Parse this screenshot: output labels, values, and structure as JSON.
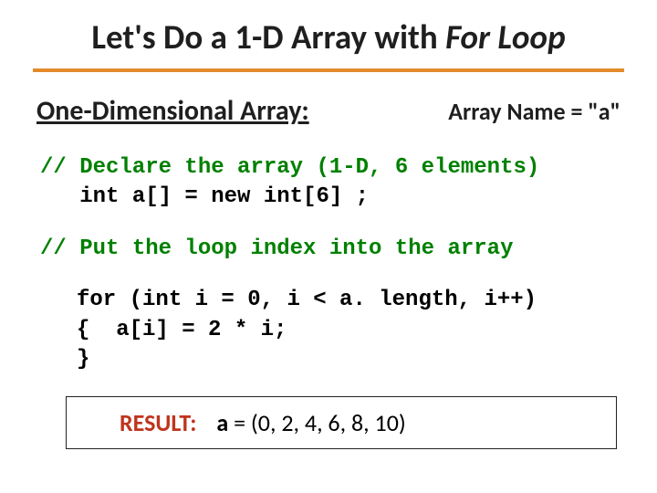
{
  "colors": {
    "title_text": "#1f1f1f",
    "divider": "#e38b2b",
    "comment_green": "#008000",
    "code_black": "#1f1f1f",
    "result_red": "#c0341d",
    "box_border": "#222222",
    "background": "#ffffff"
  },
  "typography": {
    "title_fontsize": 37,
    "subheading_fontsize": 30,
    "array_name_fontsize": 26,
    "code_fontsize": 24,
    "result_fontsize": 26,
    "code_font": "Courier New",
    "body_font": "Calibri"
  },
  "title": {
    "prefix": "Let's Do a 1-D Array with ",
    "italic": "For Loop"
  },
  "subheading": "One-Dimensional Array:",
  "array_name_label": "Array Name = \"a\"",
  "code": {
    "comment1": "// Declare the array (1-D, 6 elements)",
    "decl": "   int a[] = new int[6] ;",
    "comment2": "// Put the loop index into the array",
    "loop1": "for (int i = 0, i < a. length, i++)",
    "loop2": "{  a[i] = 2 * i;",
    "loop3": "}"
  },
  "result": {
    "label": "RESULT:",
    "a": "a",
    "rest": " = (0, 2, 4, 6, 8, 10)"
  }
}
